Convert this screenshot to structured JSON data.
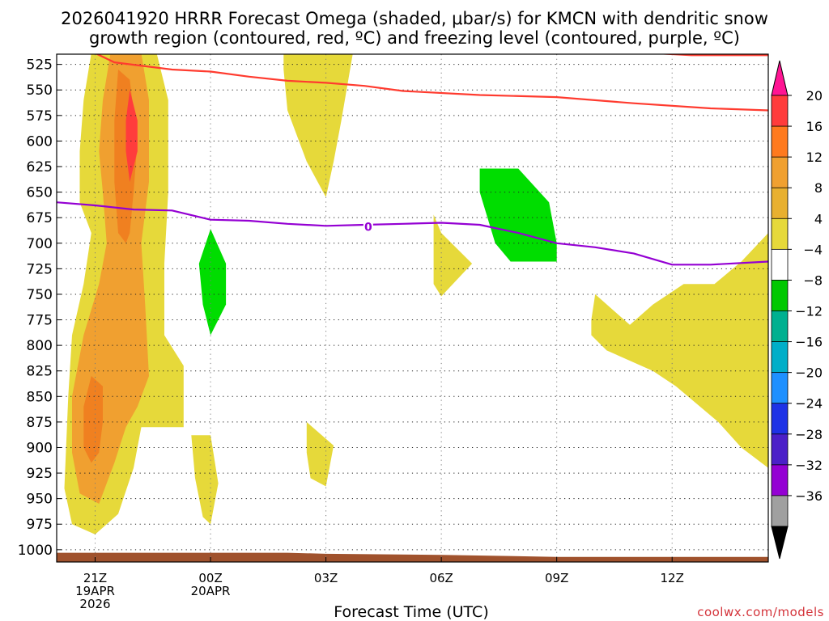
{
  "title": {
    "line1": "2026041920 HRRR Forecast Omega (shaded, μbar/s) for KMCN with dendritic snow",
    "line2": "growth region (contoured, red, ºC) and freezing level (contoured, purple, ºC)"
  },
  "watermark": "coolwx.com/models",
  "colors": {
    "ground": "#a0522d",
    "dgz_contour": "#ff3b2f",
    "freezing_contour": "#9400d3",
    "grid": "#7a7a7a"
  },
  "chart_data": {
    "type": "heatmap",
    "xlabel": "Forecast Time (UTC)",
    "ylabel": "",
    "x_ticks": [
      {
        "hour": 0,
        "lines": [
          "21Z",
          "19APR",
          "2026"
        ]
      },
      {
        "hour": 3,
        "lines": [
          "00Z",
          "20APR"
        ]
      },
      {
        "hour": 6,
        "lines": [
          "03Z"
        ]
      },
      {
        "hour": 9,
        "lines": [
          "06Z"
        ]
      },
      {
        "hour": 12,
        "lines": [
          "09Z"
        ]
      },
      {
        "hour": 15,
        "lines": [
          "12Z"
        ]
      }
    ],
    "xlim": [
      -1,
      17.5
    ],
    "y_ticks": [
      525,
      550,
      575,
      600,
      625,
      650,
      675,
      700,
      725,
      750,
      775,
      800,
      825,
      850,
      875,
      900,
      925,
      950,
      975,
      1000
    ],
    "ylim": [
      515,
      1012
    ],
    "colorbar": {
      "labels": [
        "20",
        "16",
        "12",
        "8",
        "4",
        "−4",
        "−8",
        "−12",
        "−16",
        "−20",
        "−24",
        "−28",
        "−32",
        "−36"
      ],
      "colors": [
        "#ff1493",
        "#ff3c3c",
        "#ff7a1e",
        "#f0a030",
        "#e8b030",
        "#e6d93a",
        "#ffffff",
        "#00c800",
        "#00b090",
        "#00aec8",
        "#1e90ff",
        "#1e32e6",
        "#4b20c8",
        "#9400d3",
        "#a0a0a0",
        "#000000"
      ]
    },
    "series": [
      {
        "name": "Omega 4 to 8 μbar/s",
        "color": "#e6d93a",
        "regions": [
          [
            [
              -0.1,
              514
            ],
            [
              1.6,
              514
            ],
            [
              1.9,
              560
            ],
            [
              1.9,
              650
            ],
            [
              1.8,
              720
            ],
            [
              1.8,
              790
            ],
            [
              2.3,
              820
            ],
            [
              2.3,
              880
            ],
            [
              1.2,
              880
            ],
            [
              1.0,
              920
            ],
            [
              0.6,
              965
            ],
            [
              0.0,
              985
            ],
            [
              -0.6,
              975
            ],
            [
              -0.8,
              940
            ],
            [
              -0.7,
              850
            ],
            [
              -0.6,
              790
            ],
            [
              -0.3,
              740
            ],
            [
              -0.1,
              690
            ],
            [
              -0.4,
              660
            ],
            [
              -0.4,
              610
            ],
            [
              -0.3,
              560
            ]
          ],
          [
            [
              4.9,
              514
            ],
            [
              6.7,
              514
            ],
            [
              6.4,
              580
            ],
            [
              6.2,
              620
            ],
            [
              6.0,
              655
            ],
            [
              5.5,
              620
            ],
            [
              5.0,
              570
            ],
            [
              4.9,
              530
            ]
          ],
          [
            [
              8.8,
              672
            ],
            [
              9.0,
              690
            ],
            [
              9.8,
              720
            ],
            [
              9.0,
              752
            ],
            [
              8.8,
              740
            ],
            [
              8.8,
              700
            ]
          ],
          [
            [
              5.5,
              875
            ],
            [
              6.2,
              898
            ],
            [
              6.0,
              938
            ],
            [
              5.6,
              930
            ],
            [
              5.5,
              905
            ]
          ],
          [
            [
              2.5,
              888
            ],
            [
              3.0,
              888
            ],
            [
              3.2,
              935
            ],
            [
              3.0,
              975
            ],
            [
              2.8,
              968
            ],
            [
              2.6,
              930
            ]
          ],
          [
            [
              13.0,
              750
            ],
            [
              13.9,
              780
            ],
            [
              14.5,
              760
            ],
            [
              15.3,
              740
            ],
            [
              16.1,
              740
            ],
            [
              16.8,
              718
            ],
            [
              17.5,
              690
            ],
            [
              17.5,
              920
            ],
            [
              16.8,
              900
            ],
            [
              16.2,
              875
            ],
            [
              15.1,
              840
            ],
            [
              14.5,
              825
            ],
            [
              13.3,
              805
            ],
            [
              12.9,
              790
            ],
            [
              12.9,
              775
            ]
          ]
        ]
      },
      {
        "name": "Omega 8 to 12 μbar/s",
        "color": "#f0a030",
        "regions": [
          [
            [
              0.4,
              514
            ],
            [
              1.2,
              514
            ],
            [
              1.4,
              560
            ],
            [
              1.4,
              640
            ],
            [
              1.2,
              700
            ],
            [
              1.3,
              760
            ],
            [
              1.4,
              830
            ],
            [
              1.1,
              860
            ],
            [
              0.8,
              880
            ],
            [
              0.5,
              915
            ],
            [
              0.1,
              955
            ],
            [
              -0.4,
              945
            ],
            [
              -0.6,
              905
            ],
            [
              -0.6,
              850
            ],
            [
              -0.3,
              790
            ],
            [
              0.1,
              740
            ],
            [
              0.3,
              700
            ],
            [
              0.2,
              650
            ],
            [
              0.1,
              610
            ],
            [
              0.2,
              560
            ]
          ]
        ]
      },
      {
        "name": "Omega 12 to 16 μbar/s",
        "color": "#f08020",
        "regions": [
          [
            [
              0.6,
              530
            ],
            [
              0.9,
              540
            ],
            [
              1.1,
              600
            ],
            [
              1.0,
              650
            ],
            [
              0.9,
              690
            ],
            [
              0.8,
              700
            ],
            [
              0.6,
              690
            ],
            [
              0.5,
              640
            ],
            [
              0.5,
              580
            ]
          ],
          [
            [
              -0.1,
              830
            ],
            [
              0.2,
              840
            ],
            [
              0.2,
              875
            ],
            [
              0.1,
              905
            ],
            [
              -0.1,
              915
            ],
            [
              -0.3,
              900
            ],
            [
              -0.3,
              860
            ]
          ]
        ]
      },
      {
        "name": "Omega 16 to 20 μbar/s",
        "color": "#ff3c3c",
        "regions": [
          [
            [
              0.9,
              550
            ],
            [
              1.1,
              580
            ],
            [
              1.1,
              610
            ],
            [
              0.9,
              640
            ],
            [
              0.8,
              610
            ],
            [
              0.8,
              580
            ]
          ]
        ]
      },
      {
        "name": "Omega -4 to -8 μbar/s",
        "color": "#00dd00",
        "regions": [
          [
            [
              3.0,
              686
            ],
            [
              3.4,
              720
            ],
            [
              3.4,
              760
            ],
            [
              3.0,
              790
            ],
            [
              2.8,
              760
            ],
            [
              2.7,
              720
            ]
          ],
          [
            [
              10.0,
              627
            ],
            [
              11.0,
              627
            ],
            [
              11.8,
              660
            ],
            [
              12.0,
              700
            ],
            [
              12.0,
              718
            ],
            [
              10.8,
              718
            ],
            [
              10.4,
              700
            ],
            [
              10.0,
              650
            ]
          ]
        ]
      },
      {
        "name": "DGZ -12C contour (red)",
        "color": "#ff3b2f",
        "points": [
          [
            0.0,
            514
          ],
          [
            0.5,
            523
          ],
          [
            2.0,
            530
          ],
          [
            3.0,
            532
          ],
          [
            4.0,
            537
          ],
          [
            5.0,
            541
          ],
          [
            6.0,
            543
          ],
          [
            7.0,
            546
          ],
          [
            8.0,
            551
          ],
          [
            10.0,
            555
          ],
          [
            12.0,
            557
          ],
          [
            14.0,
            563
          ],
          [
            16.0,
            568
          ],
          [
            17.5,
            570
          ]
        ]
      },
      {
        "name": "DGZ -18C contour (red)",
        "color": "#ff3b2f",
        "points": [
          [
            14.5,
            514
          ],
          [
            15.5,
            516
          ],
          [
            17.5,
            516
          ]
        ]
      },
      {
        "name": "Freezing level 0C (purple)",
        "color": "#9400d3",
        "points": [
          [
            -1,
            660
          ],
          [
            0,
            663
          ],
          [
            1,
            667
          ],
          [
            2,
            668
          ],
          [
            3,
            677
          ],
          [
            4,
            678
          ],
          [
            5,
            681
          ],
          [
            6,
            683
          ],
          [
            7,
            682
          ],
          [
            8,
            681
          ],
          [
            9,
            680
          ],
          [
            10,
            682
          ],
          [
            11,
            690
          ],
          [
            12,
            700
          ],
          [
            13,
            704
          ],
          [
            14,
            710
          ],
          [
            15,
            721
          ],
          [
            16,
            721
          ],
          [
            17.5,
            718
          ]
        ]
      }
    ],
    "freezing_label": "0",
    "ground": {
      "name": "ground",
      "points": [
        [
          -1,
          1003
        ],
        [
          5,
          1003
        ],
        [
          6,
          1004
        ],
        [
          9,
          1005
        ],
        [
          12,
          1007
        ],
        [
          15,
          1007
        ],
        [
          17.5,
          1007
        ]
      ]
    }
  }
}
